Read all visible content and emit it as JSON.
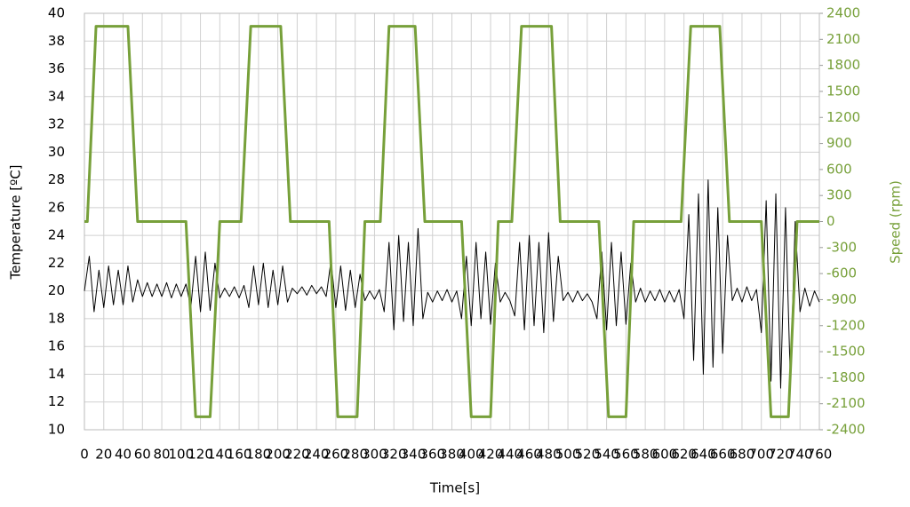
{
  "chart_data": {
    "type": "line",
    "x_label": "Time[s]",
    "y_label": "Temperature [ºC]",
    "y2_label": "Speed (rpm)",
    "xlim": [
      0,
      760
    ],
    "ylim": [
      10,
      40
    ],
    "y2lim": [
      -2400,
      2400
    ],
    "grid": true,
    "xticks": [
      0,
      20,
      40,
      60,
      80,
      100,
      120,
      140,
      160,
      180,
      200,
      220,
      240,
      260,
      280,
      300,
      320,
      340,
      360,
      380,
      400,
      420,
      440,
      460,
      480,
      500,
      520,
      540,
      560,
      580,
      600,
      620,
      640,
      660,
      680,
      700,
      720,
      740,
      760
    ],
    "yticks": [
      10,
      12,
      14,
      16,
      18,
      20,
      22,
      24,
      26,
      28,
      30,
      32,
      34,
      36,
      38,
      40
    ],
    "y2ticks": [
      -2400,
      -2100,
      -1800,
      -1500,
      -1200,
      -900,
      -600,
      -300,
      0,
      300,
      600,
      900,
      1200,
      1500,
      1800,
      2100,
      2400
    ],
    "series": [
      {
        "color": "#000000",
        "axis": "y",
        "x": [
          0,
          5,
          10,
          15,
          20,
          25,
          30,
          35,
          40,
          45,
          50,
          55,
          60,
          65,
          70,
          75,
          80,
          85,
          90,
          95,
          100,
          105,
          110,
          115,
          120,
          125,
          130,
          135,
          140,
          145,
          150,
          155,
          160,
          165,
          170,
          175,
          180,
          185,
          190,
          195,
          200,
          205,
          210,
          215,
          220,
          225,
          230,
          235,
          240,
          245,
          250,
          255,
          260,
          265,
          270,
          275,
          280,
          285,
          290,
          295,
          300,
          305,
          310,
          315,
          320,
          325,
          330,
          335,
          340,
          345,
          350,
          355,
          360,
          365,
          370,
          375,
          380,
          385,
          390,
          395,
          400,
          405,
          410,
          415,
          420,
          425,
          430,
          435,
          440,
          445,
          450,
          455,
          460,
          465,
          470,
          475,
          480,
          485,
          490,
          495,
          500,
          505,
          510,
          515,
          520,
          525,
          530,
          535,
          540,
          545,
          550,
          555,
          560,
          565,
          570,
          575,
          580,
          585,
          590,
          595,
          600,
          605,
          610,
          615,
          620,
          625,
          630,
          635,
          640,
          645,
          650,
          655,
          660,
          665,
          670,
          675,
          680,
          685,
          690,
          695,
          700,
          705,
          710,
          715,
          720,
          725,
          730,
          735,
          740,
          745,
          750,
          755,
          760
        ],
        "values": [
          20,
          22.5,
          18.5,
          21.5,
          18.8,
          21.8,
          19,
          21.5,
          19,
          21.8,
          19.2,
          20.8,
          19.6,
          20.6,
          19.6,
          20.5,
          19.6,
          20.6,
          19.5,
          20.5,
          19.6,
          20.5,
          18.8,
          22.5,
          18.5,
          22.8,
          18.6,
          22,
          19.5,
          20.2,
          19.6,
          20.3,
          19.5,
          20.4,
          18.8,
          21.8,
          19,
          22,
          18.8,
          21.5,
          19,
          21.8,
          19.2,
          20.2,
          19.8,
          20.3,
          19.7,
          20.4,
          19.8,
          20.3,
          19.6,
          22.2,
          18.8,
          21.8,
          18.6,
          21.5,
          18.8,
          21.2,
          19.3,
          20,
          19.4,
          20.1,
          18.5,
          23.5,
          17.2,
          24,
          17.8,
          23.5,
          17.5,
          24.5,
          18,
          19.9,
          19.2,
          20,
          19.3,
          20.1,
          19.2,
          20,
          18,
          22.5,
          17.5,
          23.5,
          18,
          22.8,
          17.6,
          22,
          19.2,
          19.9,
          19.3,
          18.2,
          23.5,
          17.2,
          24,
          17.5,
          23.5,
          17,
          24.2,
          17.8,
          22.5,
          19.3,
          19.9,
          19.2,
          20,
          19.3,
          19.8,
          19.2,
          18,
          22.8,
          17.2,
          23.5,
          17.5,
          22.8,
          17.6,
          22,
          19.2,
          20.2,
          19.2,
          20,
          19.3,
          20.1,
          19.2,
          20,
          19.2,
          20.1,
          18,
          25.5,
          15,
          27,
          14,
          28,
          14.5,
          26,
          15.5,
          24,
          19.3,
          20.2,
          19.2,
          20.3,
          19.3,
          20.1,
          17,
          26.5,
          13.5,
          27,
          13,
          26,
          13.5,
          25,
          18.5,
          20.2,
          18.9,
          20,
          19.2
        ]
      },
      {
        "color": "#77a03a",
        "axis": "y2",
        "x": [
          0,
          3,
          12,
          45,
          55,
          105,
          115,
          130,
          140,
          162,
          172,
          203,
          213,
          253,
          262,
          282,
          290,
          306,
          315,
          342,
          352,
          390,
          400,
          420,
          428,
          442,
          452,
          483,
          492,
          532,
          542,
          560,
          568,
          617,
          627,
          657,
          667,
          700,
          710,
          728,
          737,
          760
        ],
        "values": [
          0,
          0,
          2250,
          2250,
          0,
          0,
          -2250,
          -2250,
          0,
          0,
          2250,
          2250,
          0,
          0,
          -2250,
          -2250,
          0,
          0,
          2250,
          2250,
          0,
          0,
          -2250,
          -2250,
          0,
          0,
          2250,
          2250,
          0,
          0,
          -2250,
          -2250,
          0,
          0,
          2250,
          2250,
          0,
          0,
          -2250,
          -2250,
          0,
          0
        ]
      }
    ]
  }
}
